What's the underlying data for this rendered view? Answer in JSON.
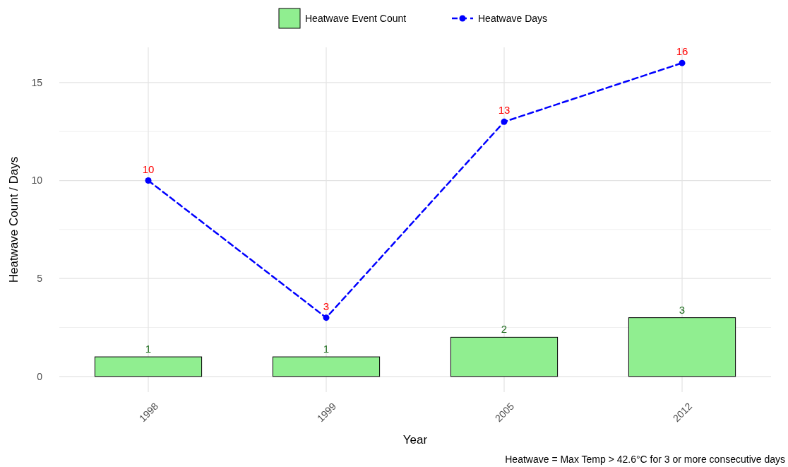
{
  "chart_data": {
    "type": "bar",
    "categories": [
      "1998",
      "1999",
      "2005",
      "2012"
    ],
    "series": [
      {
        "name": "Heatwave Event Count",
        "color": "#90ee90",
        "values": [
          1,
          1,
          2,
          3
        ]
      },
      {
        "name": "Heatwave Days",
        "type": "line",
        "color": "#0000ff",
        "values": [
          10,
          3,
          13,
          16
        ],
        "marker": "circle",
        "line_style": "dashed"
      }
    ],
    "xlabel": "Year",
    "ylabel": "Heatwave Count / Days",
    "ylim": [
      -0.8,
      16.8
    ],
    "yticks": [
      0,
      5,
      10,
      15
    ],
    "grid": true,
    "legend": "top",
    "data_labels": true,
    "annotations": [
      "Heatwave = Max Temp > 42.6°C for 3 or more consecutive days"
    ]
  }
}
